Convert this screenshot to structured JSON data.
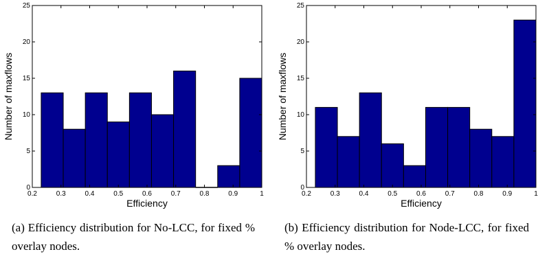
{
  "charts": [
    {
      "caption": "(a) Efficiency distribution for No-LCC, for fixed % overlay nodes."
    },
    {
      "caption": "(b) Efficiency distribution for Node-LCC, for fixed % overlay nodes."
    }
  ],
  "chart_data": [
    {
      "type": "bar",
      "title": "",
      "xlabel": "Efficiency",
      "ylabel": "Number of maxflows",
      "xlim": [
        0.2,
        1
      ],
      "ylim": [
        0,
        25
      ],
      "xticks": [
        "0.2",
        "0.3",
        "0.4",
        "0.5",
        "0.6",
        "0.7",
        "0.8",
        "0.9",
        "1"
      ],
      "yticks": [
        "0",
        "5",
        "10",
        "15",
        "20",
        "25"
      ],
      "bin_edges": [
        0.231,
        0.3079,
        0.3848,
        0.4617,
        0.5386,
        0.6155,
        0.6924,
        0.7693,
        0.8462,
        0.9231,
        1.0
      ],
      "values": [
        13,
        8,
        13,
        9,
        13,
        10,
        16,
        0,
        3,
        15
      ],
      "bar_color": "#00008f",
      "grid": false
    },
    {
      "type": "bar",
      "title": "",
      "xlabel": "Efficiency",
      "ylabel": "Number of maxflows",
      "xlim": [
        0.2,
        1
      ],
      "ylim": [
        0,
        25
      ],
      "xticks": [
        "0.2",
        "0.3",
        "0.4",
        "0.5",
        "0.6",
        "0.7",
        "0.8",
        "0.9",
        "1"
      ],
      "yticks": [
        "0",
        "5",
        "10",
        "15",
        "20",
        "25"
      ],
      "bin_edges": [
        0.231,
        0.3079,
        0.3848,
        0.4617,
        0.5386,
        0.6155,
        0.6924,
        0.7693,
        0.8462,
        0.9231,
        1.0
      ],
      "values": [
        11,
        7,
        13,
        6,
        3,
        11,
        11,
        8,
        7,
        23
      ],
      "bar_color": "#00008f",
      "grid": false
    }
  ]
}
